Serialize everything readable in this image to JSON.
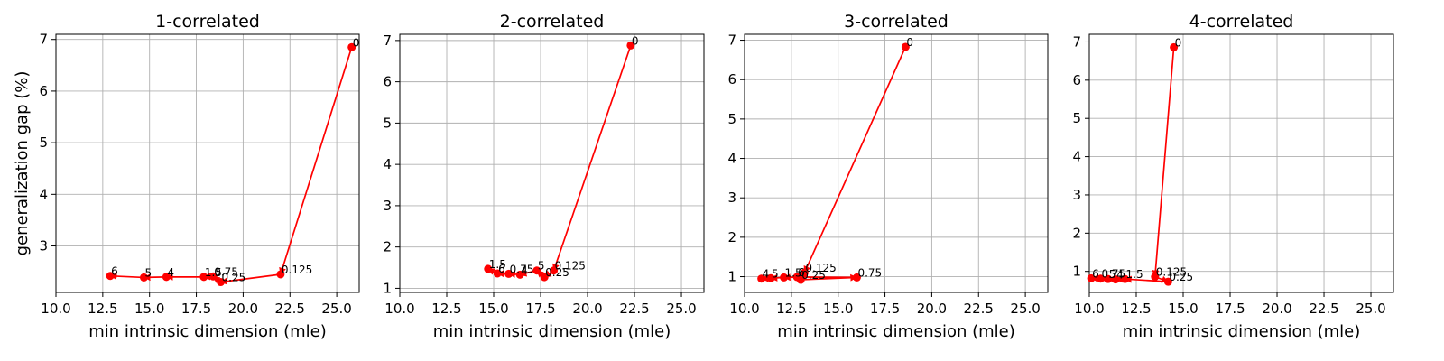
{
  "chart_data": [
    {
      "type": "line",
      "title": "1-correlated",
      "xlabel": "min intrinsic dimension (mle)",
      "ylabel": "generalization gap (%)",
      "xlim": [
        10,
        26.2
      ],
      "ylim": [
        2.1,
        7.1
      ],
      "xticks": [
        "10.0",
        "12.5",
        "15.0",
        "17.5",
        "20.0",
        "22.5",
        "25.0"
      ],
      "yticks": [
        "3",
        "4",
        "5",
        "6",
        "7"
      ],
      "grid": true,
      "series": [
        {
          "color": "#ff0000",
          "points": [
            {
              "label": "0",
              "x": 25.8,
              "y": 6.85
            },
            {
              "label": "0.125",
              "x": 22.0,
              "y": 2.45
            },
            {
              "label": "0.25",
              "x": 18.8,
              "y": 2.3
            },
            {
              "label": "0.75",
              "x": 18.4,
              "y": 2.41
            },
            {
              "label": "1.5",
              "x": 17.9,
              "y": 2.4
            },
            {
              "label": "4",
              "x": 15.9,
              "y": 2.4
            },
            {
              "label": "5",
              "x": 14.7,
              "y": 2.39
            },
            {
              "label": "6",
              "x": 12.9,
              "y": 2.42
            }
          ]
        }
      ]
    },
    {
      "type": "line",
      "title": "2-correlated",
      "xlabel": "min intrinsic dimension (mle)",
      "ylabel": "",
      "xlim": [
        10,
        26.2
      ],
      "ylim": [
        0.9,
        7.15
      ],
      "xticks": [
        "10.0",
        "12.5",
        "15.0",
        "17.5",
        "20.0",
        "22.5",
        "25.0"
      ],
      "yticks": [
        "1",
        "2",
        "3",
        "4",
        "5",
        "6",
        "7"
      ],
      "grid": true,
      "series": [
        {
          "color": "#ff0000",
          "points": [
            {
              "label": "0",
              "x": 22.3,
              "y": 6.88
            },
            {
              "label": "0.125",
              "x": 18.2,
              "y": 1.43
            },
            {
              "label": "0.25",
              "x": 17.7,
              "y": 1.27
            },
            {
              "label": "5",
              "x": 17.3,
              "y": 1.43
            },
            {
              "label": "4",
              "x": 16.4,
              "y": 1.33
            },
            {
              "label": "0.75",
              "x": 15.8,
              "y": 1.35
            },
            {
              "label": "6",
              "x": 15.2,
              "y": 1.36
            },
            {
              "label": "1.5",
              "x": 14.7,
              "y": 1.47
            }
          ]
        }
      ]
    },
    {
      "type": "line",
      "title": "3-correlated",
      "xlabel": "min intrinsic dimension (mle)",
      "ylabel": "",
      "xlim": [
        10,
        26.2
      ],
      "ylim": [
        0.6,
        7.15
      ],
      "xticks": [
        "10.0",
        "12.5",
        "15.0",
        "17.5",
        "20.0",
        "22.5",
        "25.0"
      ],
      "yticks": [
        "1",
        "2",
        "3",
        "4",
        "5",
        "6",
        "7"
      ],
      "grid": true,
      "series": [
        {
          "color": "#ff0000",
          "points": [
            {
              "label": "0",
              "x": 18.6,
              "y": 6.83
            },
            {
              "label": "0.125",
              "x": 13.2,
              "y": 1.1
            },
            {
              "label": "0.25",
              "x": 13.0,
              "y": 0.92
            },
            {
              "label": "0.75",
              "x": 16.0,
              "y": 0.98
            },
            {
              "label": "6",
              "x": 12.8,
              "y": 0.99
            },
            {
              "label": "1.5",
              "x": 12.1,
              "y": 0.98
            },
            {
              "label": "5",
              "x": 11.4,
              "y": 0.96
            },
            {
              "label": "4",
              "x": 10.9,
              "y": 0.95
            }
          ]
        }
      ]
    },
    {
      "type": "line",
      "title": "4-correlated",
      "xlabel": "min intrinsic dimension (mle)",
      "ylabel": "",
      "xlim": [
        10,
        26.2
      ],
      "ylim": [
        0.45,
        7.2
      ],
      "xticks": [
        "10.0",
        "12.5",
        "15.0",
        "17.5",
        "20.0",
        "22.5",
        "25.0"
      ],
      "yticks": [
        "1",
        "2",
        "3",
        "4",
        "5",
        "6",
        "7"
      ],
      "grid": true,
      "series": [
        {
          "color": "#ff0000",
          "points": [
            {
              "label": "0",
              "x": 14.5,
              "y": 6.86
            },
            {
              "label": "0.125",
              "x": 13.5,
              "y": 0.86
            },
            {
              "label": "0.25",
              "x": 14.2,
              "y": 0.73
            },
            {
              "label": "1.5",
              "x": 11.9,
              "y": 0.8
            },
            {
              "label": "4",
              "x": 11.4,
              "y": 0.79
            },
            {
              "label": "5",
              "x": 11.0,
              "y": 0.8
            },
            {
              "label": "0.75",
              "x": 10.6,
              "y": 0.81
            },
            {
              "label": "6",
              "x": 10.1,
              "y": 0.82
            }
          ]
        }
      ]
    }
  ]
}
